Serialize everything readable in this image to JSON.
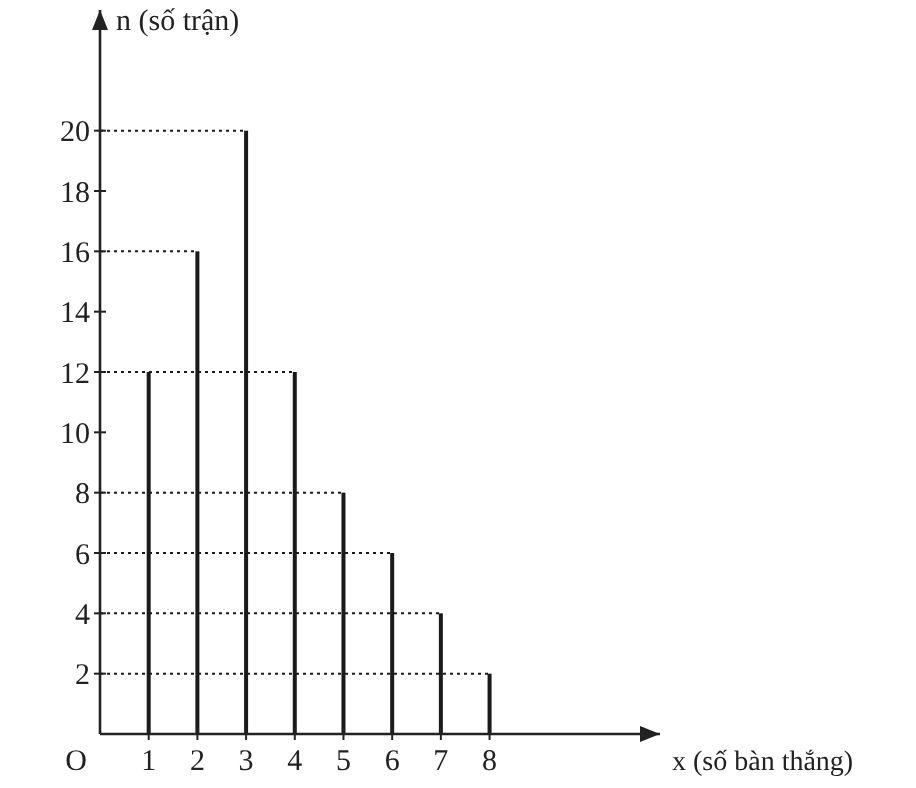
{
  "chart_data": {
    "type": "bar",
    "xlabel": "x (số bàn thắng)",
    "ylabel": "n (số trận)",
    "x": [
      1,
      2,
      3,
      4,
      5,
      6,
      7,
      8
    ],
    "values": [
      12,
      16,
      20,
      12,
      8,
      6,
      4,
      2
    ],
    "color": "#1a1a1a",
    "xlim": [
      0,
      11.5
    ],
    "xticks": [
      1,
      2,
      3,
      4,
      5,
      6,
      7,
      8
    ],
    "annotations": [
      "O"
    ],
    "ylim": [
      0,
      24
    ],
    "yticks": [
      2,
      4,
      6,
      8,
      10,
      12,
      14,
      16,
      18,
      20
    ],
    "ref_lines": [
      {
        "axis": "y",
        "value": 20,
        "line_style": "dotted"
      },
      {
        "axis": "y",
        "value": 16,
        "line_style": "dotted"
      },
      {
        "axis": "y",
        "value": 12,
        "line_style": "dotted"
      },
      {
        "axis": "y",
        "value": 8,
        "line_style": "dotted"
      },
      {
        "axis": "y",
        "value": 6,
        "line_style": "dotted"
      },
      {
        "axis": "y",
        "value": 4,
        "line_style": "dotted"
      },
      {
        "axis": "y",
        "value": 2,
        "line_style": "dotted"
      }
    ],
    "grid": false
  }
}
